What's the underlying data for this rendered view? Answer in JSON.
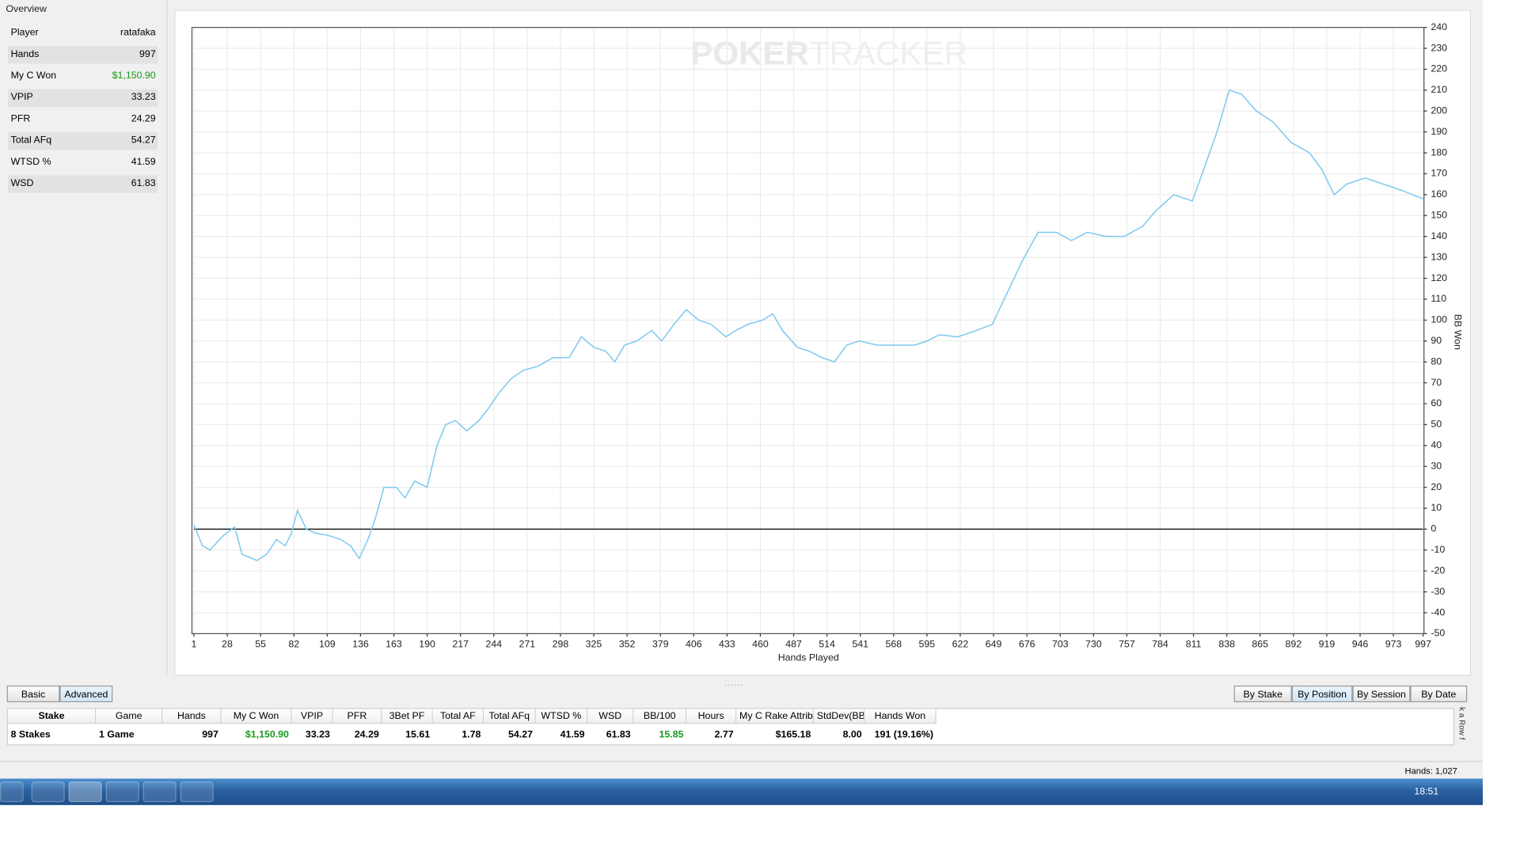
{
  "overview": {
    "title": "Overview",
    "rows": [
      [
        "Player",
        "ratafaka"
      ],
      [
        "Hands",
        "997"
      ],
      [
        "My C Won",
        "$1,150.90"
      ],
      [
        "VPIP",
        "33.23"
      ],
      [
        "PFR",
        "24.29"
      ],
      [
        "Total AFq",
        "54.27"
      ],
      [
        "WTSD %",
        "41.59"
      ],
      [
        "WSD",
        "61.83"
      ]
    ]
  },
  "chart_data": {
    "type": "line",
    "watermark": [
      "POKER",
      "TRACKER"
    ],
    "xlabel": "Hands Played",
    "ylabel": "BB Won",
    "color": "#7cc8ee",
    "grid": true,
    "x": [
      1,
      8,
      14,
      25,
      34,
      40,
      52,
      60,
      68,
      75,
      80,
      85,
      92,
      100,
      110,
      120,
      128,
      135,
      142,
      148,
      155,
      165,
      172,
      180,
      190,
      198,
      205,
      213,
      222,
      232,
      240,
      248,
      258,
      268,
      280,
      292,
      305,
      315,
      325,
      335,
      342,
      350,
      360,
      372,
      380,
      390,
      400,
      410,
      420,
      432,
      440,
      450,
      462,
      470,
      478,
      490,
      500,
      510,
      520,
      530,
      540,
      555,
      570,
      585,
      595,
      605,
      620,
      635,
      648,
      660,
      672,
      685,
      700,
      712,
      725,
      740,
      755,
      770,
      780,
      795,
      810,
      818,
      830,
      840,
      850,
      862,
      875,
      890,
      905,
      915,
      925,
      935,
      950,
      965,
      980,
      997
    ],
    "values": [
      2,
      -8,
      -10,
      -3,
      1,
      -12,
      -15,
      -12,
      -5,
      -8,
      -2,
      9,
      0,
      -2,
      -3,
      -5,
      -8,
      -14,
      -5,
      5,
      20,
      20,
      15,
      23,
      20,
      40,
      50,
      52,
      47,
      52,
      58,
      65,
      72,
      76,
      78,
      82,
      82,
      92,
      87,
      85,
      80,
      88,
      90,
      95,
      90,
      98,
      105,
      100,
      98,
      92,
      95,
      98,
      100,
      103,
      95,
      87,
      85,
      82,
      80,
      88,
      90,
      88,
      88,
      88,
      90,
      93,
      92,
      95,
      98,
      113,
      128,
      142,
      142,
      138,
      142,
      140,
      140,
      145,
      152,
      160,
      157,
      170,
      190,
      210,
      208,
      200,
      195,
      185,
      180,
      172,
      160,
      165,
      168,
      165,
      162,
      158
    ],
    "xlim": [
      1,
      997
    ],
    "ylim": [
      -50,
      240
    ],
    "xticks": [
      1,
      28,
      55,
      82,
      109,
      136,
      163,
      190,
      217,
      244,
      271,
      298,
      325,
      352,
      379,
      406,
      433,
      460,
      487,
      514,
      541,
      568,
      595,
      622,
      649,
      676,
      703,
      730,
      757,
      784,
      811,
      838,
      865,
      892,
      919,
      946,
      973,
      997
    ],
    "yticks": [
      -50,
      -40,
      -30,
      -20,
      -10,
      0,
      10,
      20,
      30,
      40,
      50,
      60,
      70,
      80,
      90,
      100,
      110,
      120,
      130,
      140,
      150,
      160,
      170,
      180,
      190,
      200,
      210,
      220,
      230,
      240
    ]
  },
  "views": {
    "left": [
      "Basic",
      "Advanced"
    ],
    "right": [
      "By Stake",
      "By Position",
      "By Session",
      "By Date"
    ]
  },
  "table": {
    "columns": [
      "Stake",
      "Game",
      "Hands",
      "My C Won",
      "VPIP",
      "PFR",
      "3Bet PF",
      "Total AF",
      "Total AFq",
      "WTSD %",
      "WSD",
      "BB/100",
      "Hours",
      "My C Rake Attrib",
      "StdDev(BB)",
      "Hands Won"
    ],
    "rows": [
      [
        "8 Stakes",
        "1 Game",
        "997",
        "$1,150.90",
        "33.23",
        "24.29",
        "15.61",
        "1.78",
        "54.27",
        "41.59",
        "61.83",
        "15.85",
        "2.77",
        "$165.18",
        "8.00",
        "191 (19.16%)"
      ]
    ]
  },
  "side_tab": "k a Row f",
  "status": "Hands: 1,027",
  "taskbar": {
    "time": "18:51"
  }
}
